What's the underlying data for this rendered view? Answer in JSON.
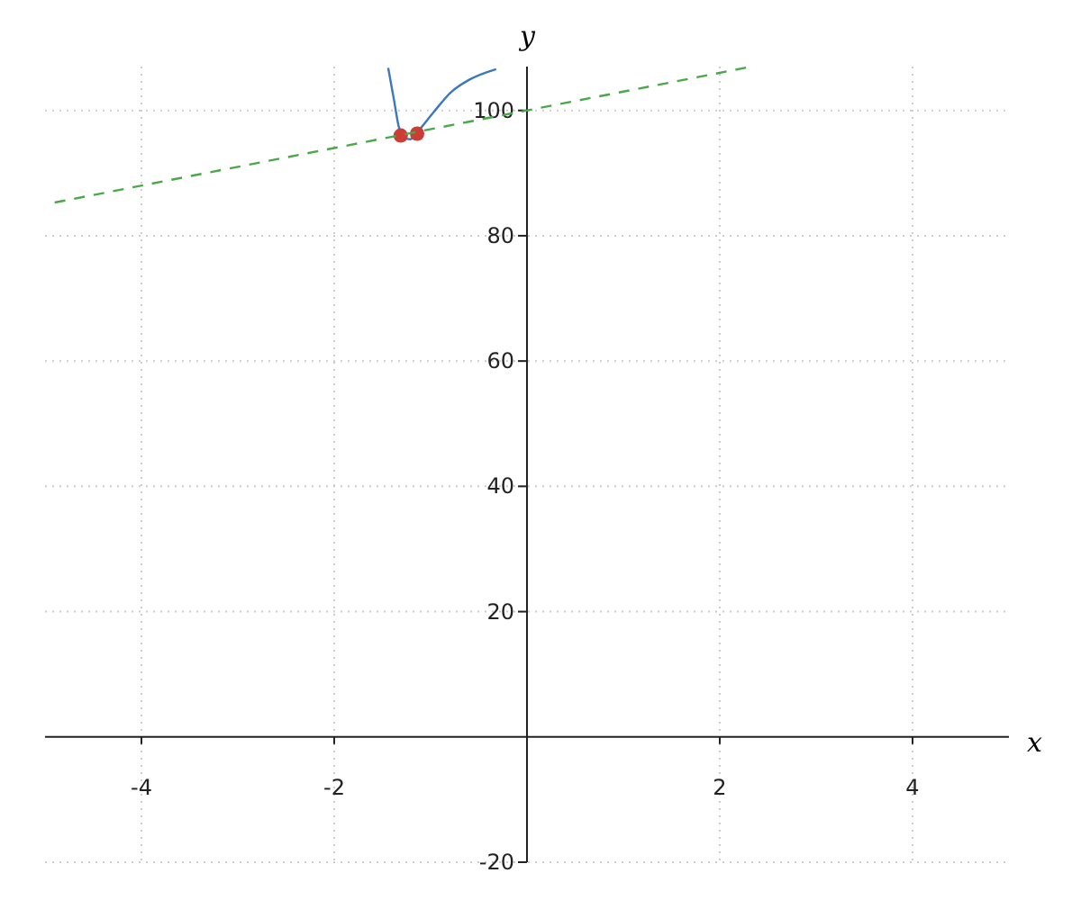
{
  "chart_data": {
    "type": "line",
    "xlabel": "x",
    "ylabel": "y",
    "xlim": [
      -5,
      5
    ],
    "ylim": [
      -20,
      107
    ],
    "xticks": [
      -4,
      -2,
      2,
      4
    ],
    "yticks": [
      -20,
      20,
      40,
      60,
      80,
      100
    ],
    "grid": true,
    "series": [
      {
        "color": "#3a78c2",
        "x": [
          -1.44,
          -1.38,
          -1.33,
          -1.27,
          -1.21,
          -1.14,
          -0.97,
          -0.79,
          -0.6,
          -0.32
        ],
        "values": [
          106.8,
          101.7,
          97.4,
          95.7,
          95.4,
          96.5,
          99.7,
          102.9,
          104.9,
          106.6
        ]
      },
      {
        "type": "scatter",
        "color": "#cc3d36",
        "marker": "circle",
        "x": [
          -1.31,
          -1.14
        ],
        "values": [
          96,
          96.3
        ]
      },
      {
        "color": "#4aa84a",
        "line_style": "dashed",
        "x": [
          -4.9,
          2.33
        ],
        "values": [
          85.3,
          107
        ]
      }
    ]
  }
}
